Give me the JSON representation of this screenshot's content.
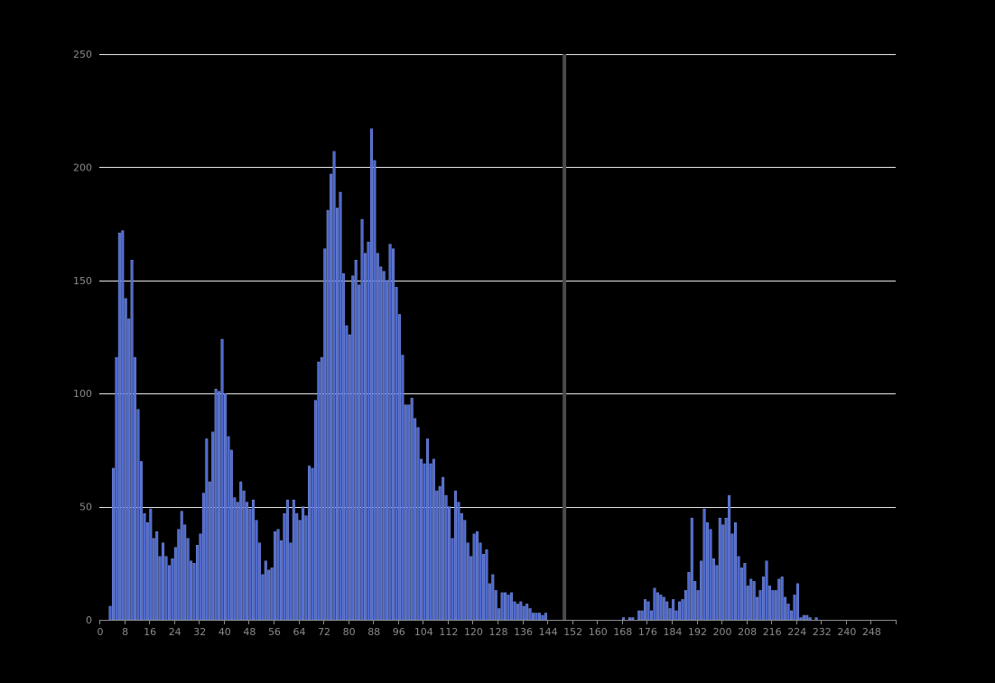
{
  "chart_data": {
    "type": "bar",
    "title": "",
    "xlabel": "",
    "ylabel": "",
    "xlim": [
      0,
      255
    ],
    "ylim": [
      0,
      250
    ],
    "y_ticks": [
      0,
      50,
      100,
      150,
      200,
      250
    ],
    "x_ticks": [
      0,
      8,
      16,
      24,
      32,
      40,
      48,
      56,
      64,
      72,
      80,
      88,
      96,
      104,
      112,
      120,
      128,
      136,
      144,
      152,
      160,
      168,
      176,
      184,
      192,
      200,
      208,
      216,
      224,
      232,
      240,
      248
    ],
    "grid": "horizontal",
    "marker_line_x": 149,
    "values": [
      0,
      0,
      0,
      6,
      67,
      116,
      171,
      172,
      142,
      133,
      159,
      116,
      93,
      70,
      47,
      43,
      49,
      36,
      39,
      28,
      34,
      28,
      24,
      27,
      32,
      40,
      48,
      42,
      36,
      26,
      25,
      33,
      38,
      56,
      80,
      61,
      83,
      102,
      101,
      124,
      100,
      81,
      75,
      54,
      52,
      61,
      57,
      52,
      49,
      53,
      44,
      34,
      20,
      26,
      22,
      23,
      39,
      40,
      35,
      47,
      53,
      34,
      53,
      47,
      44,
      50,
      46,
      68,
      67,
      97,
      114,
      116,
      164,
      181,
      197,
      207,
      182,
      189,
      153,
      130,
      126,
      152,
      159,
      148,
      177,
      162,
      167,
      217,
      203,
      162,
      156,
      154,
      150,
      166,
      164,
      147,
      135,
      117,
      95,
      95,
      98,
      89,
      85,
      71,
      69,
      80,
      69,
      71,
      57,
      59,
      63,
      55,
      50,
      36,
      57,
      52,
      47,
      44,
      34,
      28,
      38,
      39,
      34,
      29,
      31,
      16,
      20,
      13,
      5,
      12,
      12,
      11,
      12,
      8,
      7,
      8,
      6,
      7,
      5,
      3,
      3,
      3,
      2,
      3,
      0,
      0,
      0,
      0,
      0,
      0,
      0,
      0,
      0,
      0,
      0,
      0,
      0,
      0,
      0,
      0,
      0,
      0,
      0,
      0,
      0,
      0,
      0,
      0,
      1,
      0,
      1,
      1,
      0,
      4,
      4,
      9,
      8,
      4,
      14,
      12,
      11,
      10,
      8,
      5,
      9,
      4,
      8,
      9,
      13,
      21,
      45,
      17,
      13,
      26,
      49,
      43,
      40,
      27,
      24,
      45,
      42,
      45,
      55,
      38,
      43,
      28,
      23,
      25,
      15,
      18,
      17,
      10,
      13,
      19,
      26,
      15,
      13,
      13,
      18,
      19,
      10,
      7,
      4,
      11,
      16,
      1,
      2,
      2,
      1,
      0,
      1,
      0,
      0,
      0,
      0,
      0,
      0,
      0,
      0,
      0,
      0,
      0,
      0,
      0,
      0,
      0,
      0,
      0,
      0,
      0,
      0,
      0,
      0
    ],
    "colors": {
      "bar": "#4e6ad0",
      "bar_outline": "#8ea2f0",
      "grid": "#e6e6e6",
      "axis": "#8a8a8a",
      "marker": "#4a4a4a",
      "background": "#000000"
    }
  }
}
